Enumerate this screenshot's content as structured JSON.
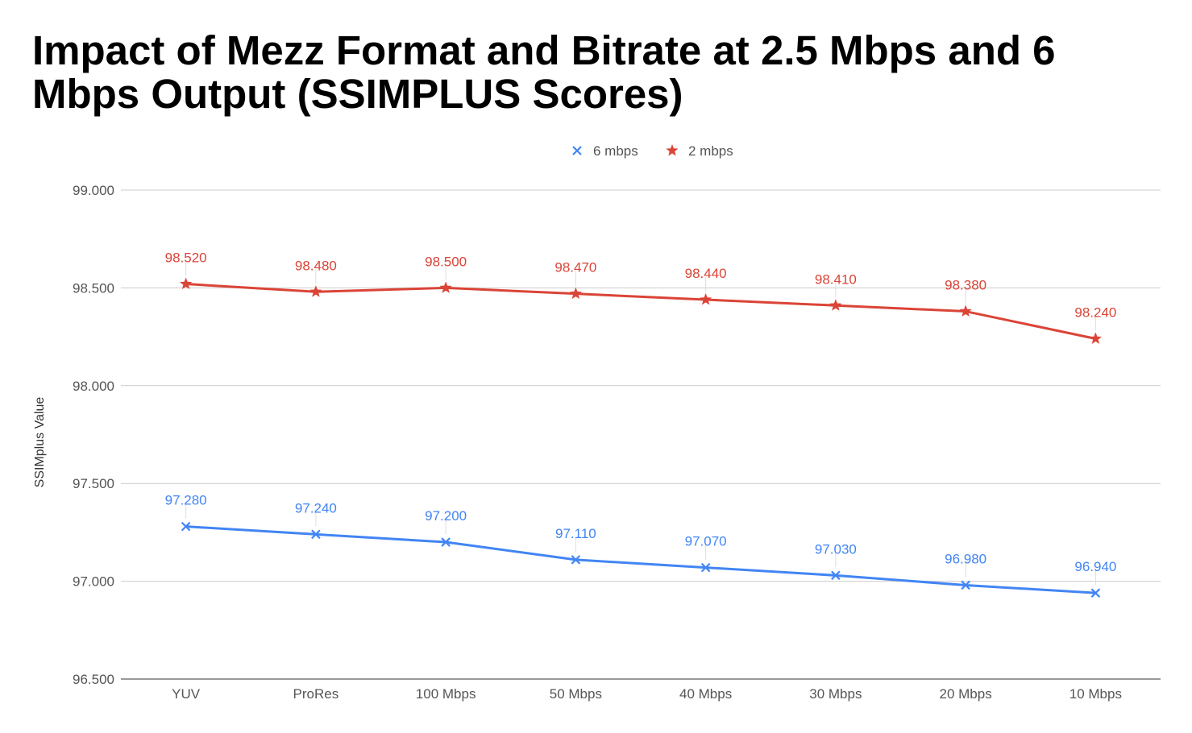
{
  "chart_data": {
    "type": "line",
    "title": "Impact of Mezz Format and Bitrate at 2.5 Mbps and 6 Mbps Output (SSIMPLUS Scores)",
    "xlabel": "",
    "ylabel": "SSIMplus Value",
    "categories": [
      "YUV",
      "ProRes",
      "100 Mbps",
      "50 Mbps",
      "40 Mbps",
      "30 Mbps",
      "20 Mbps",
      "10 Mbps"
    ],
    "ylim": [
      96.5,
      99.0
    ],
    "yticks": [
      "96.500",
      "97.000",
      "97.500",
      "98.000",
      "98.500",
      "99.000"
    ],
    "grid": true,
    "legend_position": "top-center",
    "series": [
      {
        "name": "6 mbps",
        "color": "#4285f4",
        "marker": "x",
        "values": [
          97.28,
          97.24,
          97.2,
          97.11,
          97.07,
          97.03,
          96.98,
          96.94
        ],
        "labels": [
          "97.280",
          "97.240",
          "97.200",
          "97.110",
          "97.070",
          "97.030",
          "96.980",
          "96.940"
        ]
      },
      {
        "name": "2 mbps",
        "color": "#db4437",
        "marker": "star",
        "values": [
          98.52,
          98.48,
          98.5,
          98.47,
          98.44,
          98.41,
          98.38,
          98.24
        ],
        "labels": [
          "98.520",
          "98.480",
          "98.500",
          "98.470",
          "98.440",
          "98.410",
          "98.380",
          "98.240"
        ]
      }
    ]
  }
}
